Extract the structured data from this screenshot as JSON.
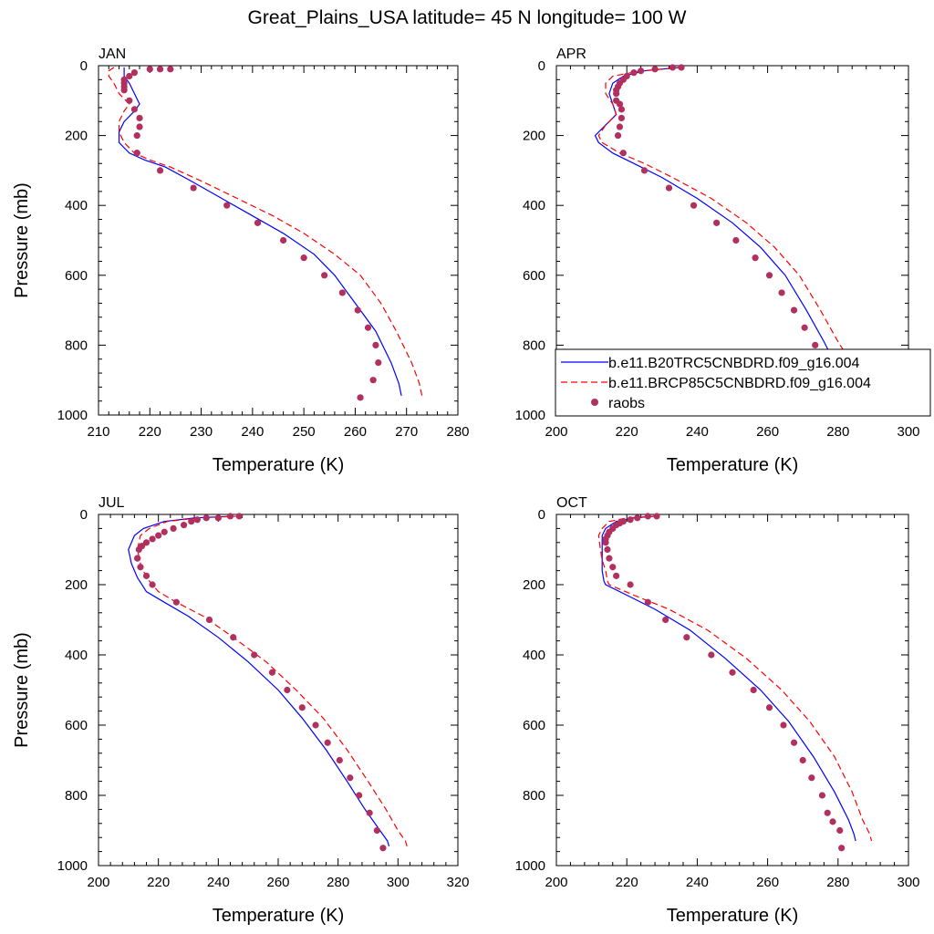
{
  "title": "Great_Plains_USA  latitude= 45 N longitude= 100 W",
  "legend": {
    "placement": "inside APR panel, lower right",
    "entries": [
      {
        "label": "b.e11.B20TRC5CNBDRD.f09_g16.004",
        "color": "#0000ff",
        "style": "solid"
      },
      {
        "label": "b.e11.BRCP85C5CNBDRD.f09_g16.004",
        "color": "#ff0000",
        "style": "dashed"
      },
      {
        "label": "raobs",
        "color": "#b03060",
        "style": "marker"
      }
    ]
  },
  "chart_data": [
    {
      "type": "line",
      "panel": "JAN",
      "xlabel": "Temperature (K)",
      "ylabel": "Pressure (mb)",
      "xlim": [
        210,
        280
      ],
      "ylim": [
        1000,
        0
      ],
      "xticks": [
        210,
        220,
        230,
        240,
        250,
        260,
        270,
        280
      ],
      "yticks": [
        0,
        200,
        400,
        600,
        800,
        1000
      ],
      "series": [
        {
          "name": "b.e11.B20TRC5CNBDRD.f09_g16.004",
          "color": "#0000ff",
          "x": [
            215,
            215,
            215,
            216,
            217,
            218,
            217,
            215,
            214,
            214,
            216,
            219,
            223,
            228,
            234,
            240,
            246,
            252,
            256,
            260,
            264,
            267,
            268.5,
            269
          ],
          "y": [
            5,
            15,
            30,
            50,
            80,
            110,
            130,
            160,
            190,
            220,
            250,
            270,
            290,
            330,
            380,
            430,
            480,
            540,
            600,
            680,
            760,
            850,
            910,
            945
          ]
        },
        {
          "name": "b.e11.BRCP85C5CNBDRD.f09_g16.004",
          "color": "#ff0000",
          "x": [
            213,
            212,
            212,
            213,
            214,
            216,
            215,
            214,
            214,
            215,
            217,
            220,
            224,
            230,
            237,
            244,
            250,
            256,
            261,
            265,
            268,
            271,
            272.5,
            273
          ],
          "y": [
            5,
            15,
            30,
            50,
            80,
            110,
            130,
            160,
            190,
            220,
            250,
            270,
            290,
            330,
            380,
            430,
            480,
            540,
            600,
            680,
            760,
            850,
            910,
            945
          ]
        },
        {
          "name": "raobs",
          "color": "#b03060",
          "x": [
            224,
            222,
            220,
            217,
            216,
            215,
            215,
            215,
            215,
            216,
            217,
            218,
            218,
            217.5,
            217.5,
            217.5,
            222,
            228.5,
            235,
            241,
            246,
            250,
            254,
            257.5,
            260.5,
            262.5,
            264,
            264.5,
            263.5,
            261
          ],
          "y": [
            10,
            10,
            10,
            20,
            30,
            40,
            50,
            60,
            70,
            100,
            125,
            150,
            175,
            200,
            250,
            250,
            300,
            350,
            400,
            450,
            500,
            550,
            600,
            650,
            700,
            750,
            800,
            850,
            900,
            950
          ]
        }
      ]
    },
    {
      "type": "line",
      "panel": "APR",
      "xlabel": "Temperature (K)",
      "ylabel": "",
      "xlim": [
        200,
        300
      ],
      "ylim": [
        1000,
        0
      ],
      "xticks": [
        200,
        220,
        240,
        260,
        280,
        300
      ],
      "yticks": [
        0,
        200,
        400,
        600,
        800,
        1000
      ],
      "series": [
        {
          "name": "b.e11.B20TRC5CNBDRD.f09_g16.004",
          "color": "#0000ff",
          "x": [
            235,
            225,
            219,
            216,
            215,
            216,
            217,
            214,
            211,
            212,
            216,
            222,
            230,
            240,
            250,
            258,
            265,
            271,
            276,
            280,
            282,
            283
          ],
          "y": [
            5,
            15,
            30,
            50,
            80,
            110,
            140,
            170,
            200,
            220,
            250,
            280,
            320,
            380,
            450,
            520,
            600,
            700,
            790,
            870,
            920,
            945
          ]
        },
        {
          "name": "b.e11.BRCP85C5CNBDRD.f09_g16.004",
          "color": "#ff0000",
          "x": [
            236,
            224,
            216,
            214,
            214,
            216,
            217,
            214,
            212,
            213,
            218,
            225,
            233,
            244,
            254,
            262,
            269,
            275,
            280,
            285,
            288,
            289
          ],
          "y": [
            5,
            15,
            30,
            50,
            80,
            110,
            140,
            170,
            200,
            220,
            250,
            280,
            320,
            380,
            450,
            520,
            600,
            700,
            790,
            870,
            920,
            945
          ]
        },
        {
          "name": "raobs",
          "color": "#b03060",
          "x": [
            235.5,
            233,
            228,
            224,
            222,
            220,
            219,
            218,
            217.5,
            217,
            217,
            217,
            218,
            218.5,
            218.5,
            218,
            217.5,
            219,
            225,
            232,
            239,
            245.5,
            251,
            256.5,
            260.5,
            264,
            267.5,
            270.5,
            273.5,
            276,
            277.5,
            278.5,
            279
          ],
          "y": [
            5,
            5,
            10,
            15,
            20,
            30,
            40,
            50,
            60,
            70,
            80,
            100,
            110,
            125,
            150,
            175,
            200,
            250,
            300,
            350,
            400,
            450,
            500,
            550,
            600,
            650,
            700,
            750,
            800,
            850,
            875,
            900,
            950
          ]
        }
      ]
    },
    {
      "type": "line",
      "panel": "JUL",
      "xlabel": "Temperature (K)",
      "ylabel": "Pressure (mb)",
      "xlim": [
        200,
        320
      ],
      "ylim": [
        1000,
        0
      ],
      "xticks": [
        200,
        220,
        240,
        260,
        280,
        300,
        320
      ],
      "yticks": [
        0,
        200,
        400,
        600,
        800,
        1000
      ],
      "series": [
        {
          "name": "b.e11.B20TRC5CNBDRD.f09_g16.004",
          "color": "#0000ff",
          "x": [
            245,
            232,
            222,
            215,
            212,
            210,
            211,
            213,
            216,
            222,
            230,
            240,
            250,
            260,
            268,
            276,
            283,
            289,
            294,
            296.5,
            297
          ],
          "y": [
            5,
            10,
            20,
            40,
            60,
            100,
            140,
            180,
            220,
            250,
            290,
            350,
            420,
            500,
            580,
            670,
            760,
            840,
            900,
            930,
            945
          ]
        },
        {
          "name": "b.e11.BRCP85C5CNBDRD.f09_g16.004",
          "color": "#ff0000",
          "x": [
            247,
            233,
            223,
            217,
            214,
            213,
            214,
            216,
            220,
            226,
            235,
            245,
            256,
            266,
            275,
            283,
            290,
            296,
            300,
            302.5,
            303
          ],
          "y": [
            5,
            10,
            20,
            40,
            60,
            100,
            140,
            180,
            220,
            250,
            290,
            350,
            420,
            500,
            580,
            670,
            760,
            840,
            900,
            930,
            945
          ]
        },
        {
          "name": "raobs",
          "color": "#b03060",
          "x": [
            247,
            244,
            240,
            236,
            233,
            231,
            228.5,
            225,
            222,
            220,
            218,
            216,
            214.5,
            213.5,
            213,
            213,
            214,
            216,
            218,
            226,
            237,
            245,
            252,
            258,
            263,
            268,
            272.5,
            276.5,
            280.5,
            284,
            287,
            290.5,
            293,
            295
          ],
          "y": [
            5,
            5,
            10,
            10,
            15,
            20,
            30,
            40,
            50,
            60,
            70,
            80,
            90,
            100,
            125,
            125,
            150,
            175,
            200,
            250,
            300,
            350,
            400,
            450,
            500,
            550,
            600,
            650,
            700,
            750,
            800,
            850,
            900,
            950
          ]
        }
      ]
    },
    {
      "type": "line",
      "panel": "OCT",
      "xlabel": "Temperature (K)",
      "ylabel": "",
      "xlim": [
        200,
        300
      ],
      "ylim": [
        1000,
        0
      ],
      "xticks": [
        200,
        220,
        240,
        260,
        280,
        300
      ],
      "yticks": [
        0,
        200,
        400,
        600,
        800,
        1000
      ],
      "series": [
        {
          "name": "b.e11.B20TRC5CNBDRD.f09_g16.004",
          "color": "#0000ff",
          "x": [
            228,
            222,
            217,
            214,
            213,
            213,
            213,
            213,
            213.5,
            214,
            220,
            228,
            238,
            248,
            258,
            266,
            273,
            279,
            283,
            284.5,
            285
          ],
          "y": [
            5,
            10,
            20,
            40,
            60,
            100,
            130,
            160,
            190,
            200,
            230,
            270,
            330,
            410,
            500,
            590,
            690,
            790,
            870,
            910,
            930
          ]
        },
        {
          "name": "b.e11.BRCP85C5CNBDRD.f09_g16.004",
          "color": "#ff0000",
          "x": [
            228,
            220,
            215,
            213,
            212,
            212.5,
            213,
            214,
            214.5,
            215,
            222,
            232,
            243,
            254,
            264,
            272,
            279,
            284,
            287,
            289,
            289.5
          ],
          "y": [
            5,
            10,
            20,
            40,
            60,
            100,
            130,
            160,
            190,
            200,
            230,
            270,
            330,
            410,
            500,
            590,
            690,
            790,
            870,
            910,
            930
          ]
        },
        {
          "name": "raobs",
          "color": "#b03060",
          "x": [
            228.5,
            226,
            223,
            221,
            219,
            218,
            217,
            216,
            215,
            214.5,
            214,
            214,
            214.5,
            215,
            216,
            217,
            221,
            226,
            231,
            237,
            244,
            250,
            256,
            260.5,
            264.5,
            267.5,
            270,
            272.5,
            275.5,
            277,
            278.5,
            280.5,
            281
          ],
          "y": [
            5,
            5,
            10,
            15,
            20,
            25,
            30,
            40,
            50,
            60,
            70,
            80,
            100,
            125,
            150,
            175,
            200,
            250,
            300,
            350,
            400,
            450,
            500,
            550,
            600,
            650,
            700,
            750,
            800,
            850,
            875,
            900,
            950
          ]
        }
      ]
    }
  ]
}
